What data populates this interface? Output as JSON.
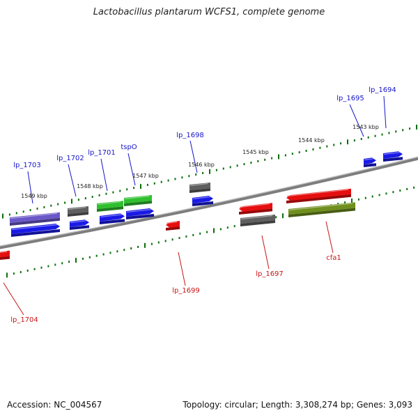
{
  "header": {
    "title": "Lactobacillus plantarum WCFS1, complete genome"
  },
  "footer": {
    "accession": "Accession: NC_004567",
    "topology": "Topology: circular; Length: 3,308,274 bp; Genes: 3,093"
  },
  "colors": {
    "backbone": "#7d7d7d",
    "ticks": "#0a6e0a",
    "label_forward": "#1414c8",
    "label_reverse": "#c81414",
    "blue": "#1a1ae6",
    "red": "#e60f0f",
    "gray": "#5f5f5f",
    "green": "#2fbf2f",
    "olive": "#6f8f1e",
    "purple": "#6a58c8"
  },
  "scale": {
    "unit": "kbp",
    "labels": [
      "1549 kbp",
      "1548 kbp",
      "1547 kbp",
      "1546 kbp",
      "1545 kbp",
      "1544 kbp",
      "1543 kbp"
    ]
  },
  "genes": [
    {
      "label": "lp_1703",
      "strand": "forward"
    },
    {
      "label": "lp_1702",
      "strand": "forward"
    },
    {
      "label": "lp_1701",
      "strand": "forward"
    },
    {
      "label": "tspO",
      "strand": "forward"
    },
    {
      "label": "lp_1698",
      "strand": "forward"
    },
    {
      "label": "lp_1695",
      "strand": "forward"
    },
    {
      "label": "lp_1694",
      "strand": "forward"
    },
    {
      "label": "lp_1699",
      "strand": "reverse"
    },
    {
      "label": "lp_1697",
      "strand": "reverse"
    },
    {
      "label": "cfa1",
      "strand": "reverse"
    },
    {
      "label": "lp_1704",
      "strand": "reverse"
    }
  ]
}
